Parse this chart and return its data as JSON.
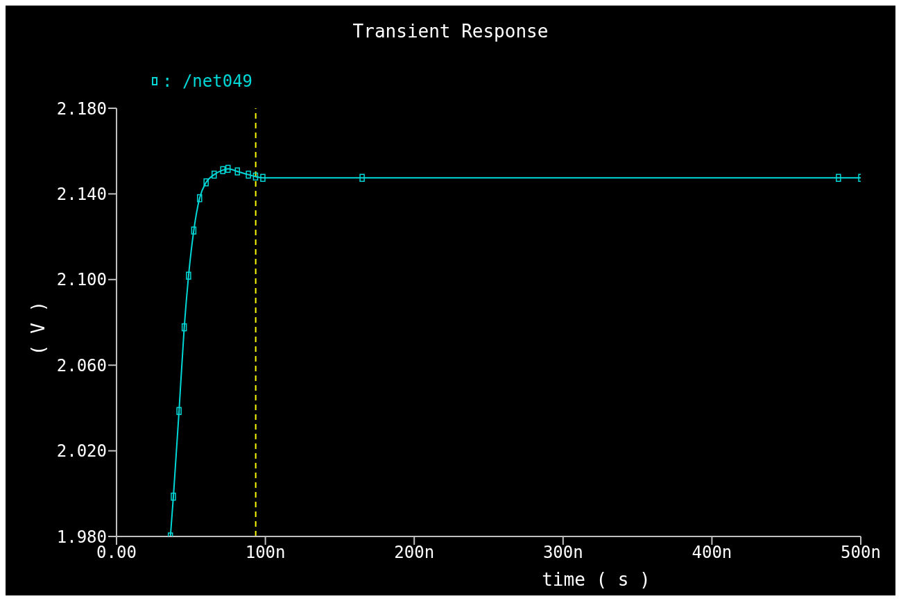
{
  "chart_data": {
    "type": "line",
    "title": "Transient Response",
    "xlabel": "time ( s )",
    "ylabel": "( V )",
    "xlim": [
      0,
      500
    ],
    "xticks": [
      {
        "value": 0,
        "label": "0.00"
      },
      {
        "value": 100,
        "label": "100n"
      },
      {
        "value": 200,
        "label": "200n"
      },
      {
        "value": 300,
        "label": "300n"
      },
      {
        "value": 400,
        "label": "400n"
      },
      {
        "value": 500,
        "label": "500n"
      }
    ],
    "ylim": [
      1.98,
      2.18
    ],
    "yticks": [
      {
        "value": 1.98,
        "label": "1.980"
      },
      {
        "value": 2.02,
        "label": "2.020"
      },
      {
        "value": 2.06,
        "label": "2.060"
      },
      {
        "value": 2.1,
        "label": "2.100"
      },
      {
        "value": 2.14,
        "label": "2.140"
      },
      {
        "value": 2.18,
        "label": "2.180"
      }
    ],
    "x": [
      36.2,
      38.2,
      42,
      45.5,
      48.4,
      51.9,
      55.8,
      60.2,
      65.6,
      71.4,
      74.9,
      81.2,
      88.6,
      93.4,
      98.3,
      165,
      485,
      500
    ],
    "series": [
      {
        "name": ": /net049",
        "color": "#00d8d8",
        "values": [
          1.98,
          1.9986,
          2.0386,
          2.0777,
          2.1018,
          2.1229,
          2.138,
          2.1454,
          2.149,
          2.1511,
          2.1517,
          2.1505,
          2.149,
          2.1481,
          2.1475,
          2.1475,
          2.1475,
          2.1475
        ]
      }
    ],
    "ref_lines": [
      {
        "axis": "x",
        "value": 93.5,
        "color": "#ffff00",
        "line_style": "dashed"
      }
    ],
    "grid": false,
    "legend": "top left",
    "marker": "square",
    "line_style": "solid"
  }
}
